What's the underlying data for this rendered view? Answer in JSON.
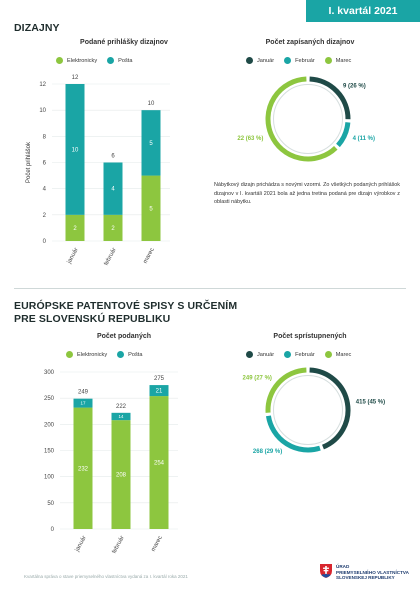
{
  "header": {
    "quarter": "I. kvartál 2021"
  },
  "sections": {
    "designs": "DIZAJNY",
    "patents_line1": "EURÓPSKE PATENTOVÉ SPISY S URČENÍM",
    "patents_line2": "PRE SLOVENSKÚ REPUBLIKU"
  },
  "note": "Nábytkový dizajn prichádza s novými vzormi. Zo všetkých podaných prihlášok dizajnov v I. kvartáli 2021 bola až jedna tretina podaná pre dizajn výrobkov z oblasti nábytku.",
  "footer": "Kvartálna správa o stave priemyselného vlastníctva vydaná za I. kvartál roka 2021",
  "logo": {
    "line1": "ÚRAD",
    "line2": "PRIEMYSELNÉHO VLASTNÍCTVA",
    "line3": "SLOVENSKEJ REPUBLIKY"
  },
  "colors": {
    "teal": "#1aa5a5",
    "green": "#8dc63f",
    "dark": "#1f4a47"
  },
  "chart_data": [
    {
      "type": "bar",
      "stacked": true,
      "title": "Podané prihlášky dizajnov",
      "ylabel": "Počet prihlášok",
      "categories": [
        "január",
        "február",
        "marec"
      ],
      "series": [
        {
          "name": "Elektronicky",
          "color": "#8dc63f",
          "values": [
            2,
            2,
            5
          ]
        },
        {
          "name": "Pošta",
          "color": "#1aa5a5",
          "values": [
            10,
            4,
            5
          ]
        }
      ],
      "totals": [
        12,
        6,
        10
      ],
      "ylim": [
        0,
        12
      ],
      "yticks": [
        0,
        2,
        4,
        6,
        8,
        10,
        12
      ]
    },
    {
      "type": "pie",
      "donut": true,
      "title": "Počet zapísaných dizajnov",
      "slices": [
        {
          "name": "Január",
          "value": 9,
          "label": "9 (26 %)",
          "color": "#1f4a47"
        },
        {
          "name": "Február",
          "value": 4,
          "label": "4 (11 %)",
          "color": "#1aa5a5"
        },
        {
          "name": "Marec",
          "value": 22,
          "label": "22 (63 %)",
          "color": "#8dc63f"
        }
      ]
    },
    {
      "type": "bar",
      "stacked": true,
      "title": "Počet podaných",
      "categories": [
        "január",
        "február",
        "marec"
      ],
      "series": [
        {
          "name": "Elektronicky",
          "color": "#8dc63f",
          "values": [
            232,
            208,
            254
          ]
        },
        {
          "name": "Pošta",
          "color": "#1aa5a5",
          "values": [
            17,
            14,
            21
          ]
        }
      ],
      "totals": [
        249,
        222,
        275
      ],
      "ylim": [
        0,
        300
      ],
      "yticks": [
        0,
        50,
        100,
        150,
        200,
        250,
        300
      ]
    },
    {
      "type": "pie",
      "donut": true,
      "title": "Počet sprístupnených",
      "slices": [
        {
          "name": "Január",
          "value": 415,
          "label": "415 (45 %)",
          "color": "#1f4a47"
        },
        {
          "name": "Február",
          "value": 268,
          "label": "268 (29 %)",
          "color": "#1aa5a5"
        },
        {
          "name": "Marec",
          "value": 249,
          "label": "249 (27 %)",
          "color": "#8dc63f"
        }
      ]
    }
  ]
}
